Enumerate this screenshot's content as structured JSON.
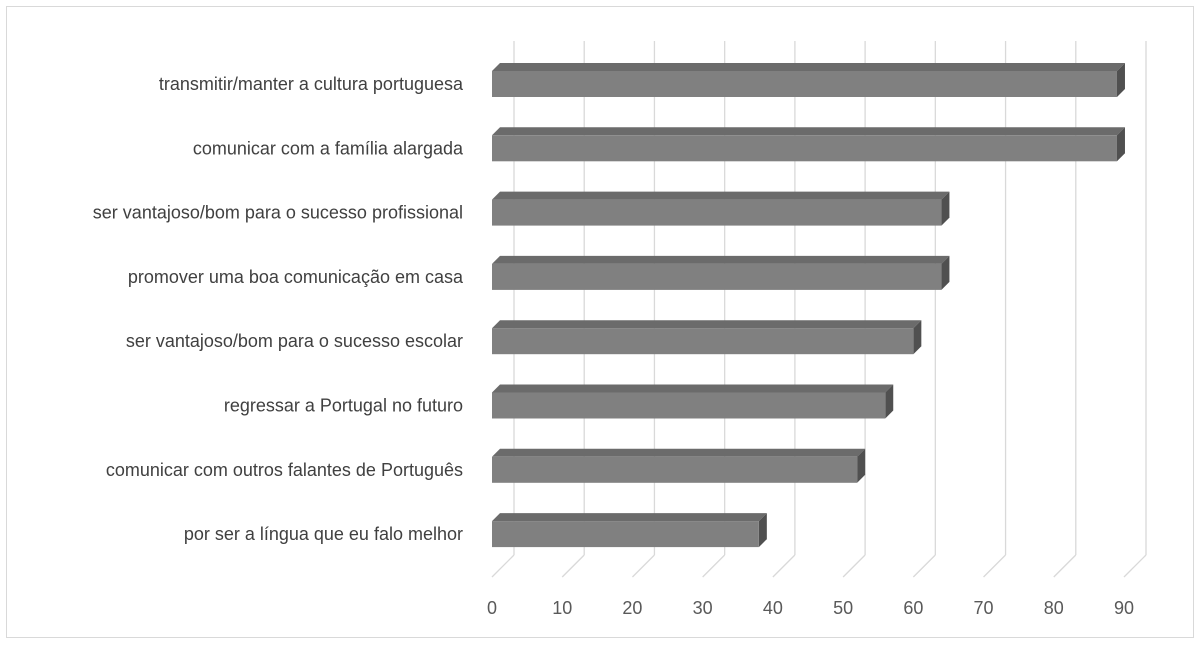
{
  "chart_data": {
    "type": "bar",
    "orientation": "horizontal",
    "style": "3d",
    "categories": [
      "transmitir/manter a cultura portuguesa",
      "comunicar com a família alargada",
      "ser vantajoso/bom para o sucesso profissional",
      "promover uma boa comunicação em casa",
      "ser vantajoso/bom para o sucesso escolar",
      "regressar a Portugal no futuro",
      "comunicar com outros falantes de Português",
      "por ser a língua que eu falo melhor"
    ],
    "values": [
      89,
      89,
      64,
      64,
      60,
      56,
      52,
      38
    ],
    "xlim": [
      0,
      90
    ],
    "xticks": [
      "0",
      "10",
      "20",
      "30",
      "40",
      "50",
      "60",
      "70",
      "80",
      "90"
    ],
    "grid": true,
    "legend": "none",
    "colors": {
      "bar_front": "#808080",
      "bar_top": "#6b6b6b",
      "bar_side": "#505050",
      "grid": "#d9d9d9",
      "text": "#404040"
    }
  }
}
